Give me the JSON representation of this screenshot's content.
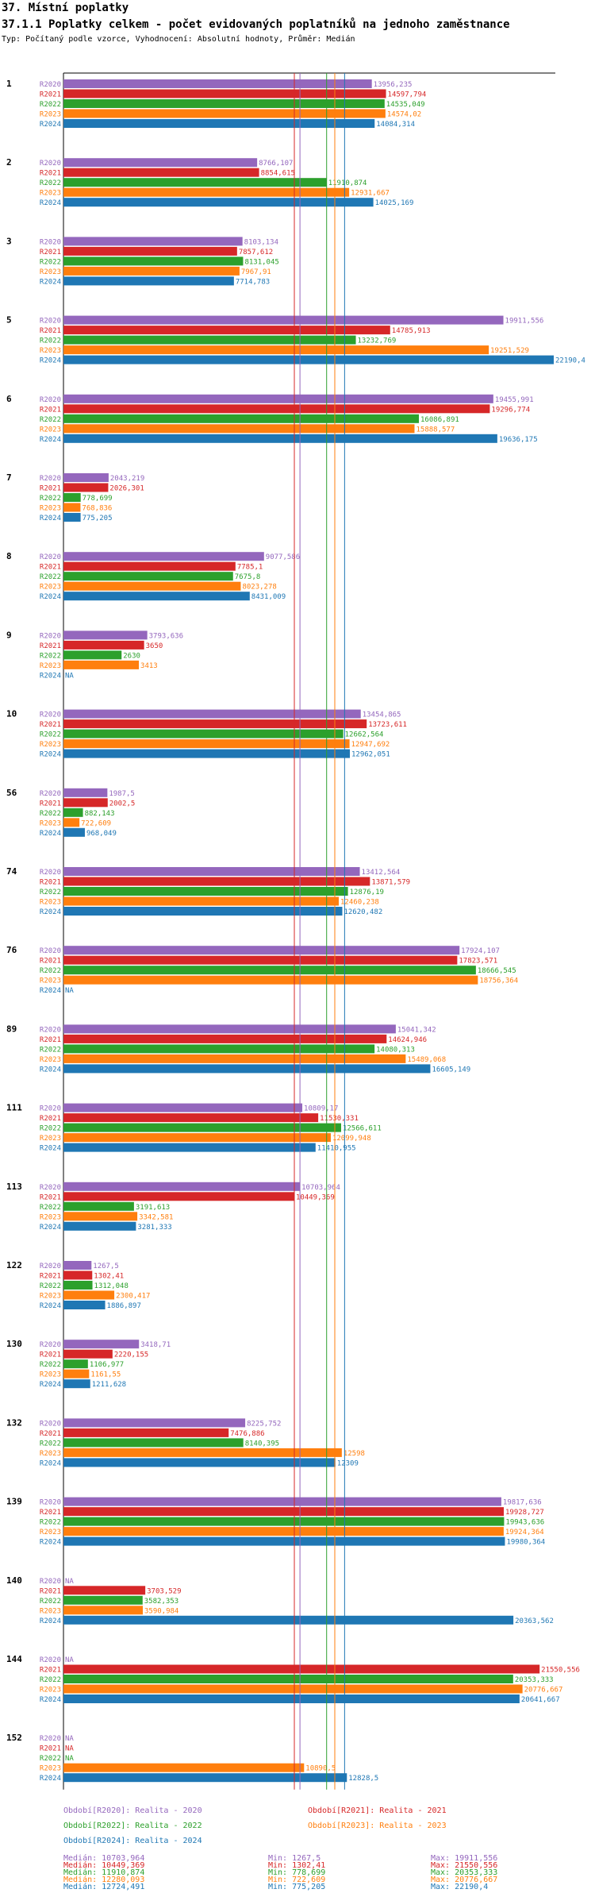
{
  "header": {
    "title": "37. Místní poplatky",
    "subtitle": "37.1.1 Poplatky celkem - počet evidovaných poplatníků na jednoho zaměstnance",
    "description": "Typ: Počítaný podle vzorce, Vyhodnocení: Absolutní hodnoty, Průměr: Medián"
  },
  "chart_data": {
    "type": "bar",
    "orientation": "horizontal",
    "title": "37.1.1 Poplatky celkem - počet evidovaných poplatníků na jednoho zaměstnance",
    "xlim": [
      0,
      22190.4
    ],
    "na_label": "NA",
    "categories": [
      "1",
      "2",
      "3",
      "5",
      "6",
      "7",
      "8",
      "9",
      "10",
      "56",
      "74",
      "76",
      "89",
      "111",
      "113",
      "122",
      "130",
      "132",
      "139",
      "140",
      "144",
      "152"
    ],
    "series": [
      {
        "name": "R2020",
        "color": "#9467bd",
        "values": [
          13956.235,
          8766.107,
          8103.134,
          19911.556,
          19455.991,
          2043.219,
          9077.586,
          3793.636,
          13454.865,
          1987.5,
          13412.564,
          17924.107,
          15041.342,
          10809.17,
          10703.964,
          1267.5,
          3418.71,
          8225.752,
          19817.636,
          null,
          null,
          null
        ],
        "labels": [
          "13956,235",
          "8766,107",
          "8103,134",
          "19911,556",
          "19455,991",
          "2043,219",
          "9077,586",
          "3793,636",
          "13454,865",
          "1987,5",
          "13412,564",
          "17924,107",
          "15041,342",
          "10809,17",
          "10703,964",
          "1267,5",
          "3418,71",
          "8225,752",
          "19817,636",
          "NA",
          "NA",
          "NA"
        ]
      },
      {
        "name": "R2021",
        "color": "#d62728",
        "values": [
          14597.794,
          8854.615,
          7857.612,
          14785.913,
          19296.774,
          2026.301,
          7785.1,
          3650,
          13723.611,
          2002.5,
          13871.579,
          17823.571,
          14624.946,
          11530.331,
          10449.369,
          1302.41,
          2220.155,
          7476.886,
          19928.727,
          3703.529,
          21550.556,
          null
        ],
        "labels": [
          "14597,794",
          "8854,615",
          "7857,612",
          "14785,913",
          "19296,774",
          "2026,301",
          "7785,1",
          "3650",
          "13723,611",
          "2002,5",
          "13871,579",
          "17823,571",
          "14624,946",
          "11530,331",
          "10449,369",
          "1302,41",
          "2220,155",
          "7476,886",
          "19928,727",
          "3703,529",
          "21550,556",
          "NA"
        ]
      },
      {
        "name": "R2022",
        "color": "#2ca02c",
        "values": [
          14535.049,
          11910.874,
          8131.045,
          13232.769,
          16086.891,
          778.699,
          7675.8,
          2630,
          12662.564,
          882.143,
          12876.19,
          18666.545,
          14080.313,
          12566.611,
          3191.613,
          1312.048,
          1106.977,
          8140.395,
          19943.636,
          3582.353,
          20353.333,
          null
        ],
        "labels": [
          "14535,049",
          "11910,874",
          "8131,045",
          "13232,769",
          "16086,891",
          "778,699",
          "7675,8",
          "2630",
          "12662,564",
          "882,143",
          "12876,19",
          "18666,545",
          "14080,313",
          "12566,611",
          "3191,613",
          "1312,048",
          "1106,977",
          "8140,395",
          "19943,636",
          "3582,353",
          "20353,333",
          "NA"
        ]
      },
      {
        "name": "R2023",
        "color": "#ff7f0e",
        "values": [
          14574.02,
          12931.667,
          7967.91,
          19251.529,
          15888.577,
          768.836,
          8023.278,
          3413,
          12947.692,
          722.609,
          12460.238,
          18756.364,
          15489.068,
          12099.948,
          3342.581,
          2300.417,
          1161.55,
          12598,
          19924.364,
          3590.984,
          20776.667,
          10890.5
        ],
        "labels": [
          "14574,02",
          "12931,667",
          "7967,91",
          "19251,529",
          "15888,577",
          "768,836",
          "8023,278",
          "3413",
          "12947,692",
          "722,609",
          "12460,238",
          "18756,364",
          "15489,068",
          "12099,948",
          "3342,581",
          "2300,417",
          "1161,55",
          "12598",
          "19924,364",
          "3590,984",
          "20776,667",
          "10890,5"
        ]
      },
      {
        "name": "R2024",
        "color": "#1f77b4",
        "values": [
          14084.314,
          14025.169,
          7714.783,
          22190.4,
          19636.175,
          775.205,
          8431.009,
          null,
          12962.051,
          968.049,
          12620.482,
          null,
          16605.149,
          11410.955,
          3281.333,
          1886.897,
          1211.628,
          12309,
          19980.364,
          20363.562,
          20641.667,
          12828.5
        ],
        "labels": [
          "14084,314",
          "14025,169",
          "7714,783",
          "22190,4",
          "19636,175",
          "775,205",
          "8431,009",
          "NA",
          "12962,051",
          "968,049",
          "12620,482",
          "NA",
          "16605,149",
          "11410,955",
          "3281,333",
          "1886,897",
          "1211,628",
          "12309",
          "19980,364",
          "20363,562",
          "20641,667",
          "12828,5"
        ]
      }
    ],
    "medians": [
      10703.964,
      10449.369,
      11910.874,
      12280.093,
      12724.491
    ],
    "legend": {
      "entries": [
        {
          "label": "Období[R2020]: Realita - 2020",
          "color": "#9467bd"
        },
        {
          "label": "Období[R2021]: Realita - 2021",
          "color": "#d62728"
        },
        {
          "label": "Období[R2022]: Realita - 2022",
          "color": "#2ca02c"
        },
        {
          "label": "Období[R2023]: Realita - 2023",
          "color": "#ff7f0e"
        },
        {
          "label": "Období[R2024]: Realita - 2024",
          "color": "#1f77b4"
        }
      ],
      "stats": [
        {
          "median": "Medián: 10703,964",
          "min": "Min: 1267,5",
          "max": "Max: 19911,556",
          "color": "#9467bd"
        },
        {
          "median": "Medián: 10449,369",
          "min": "Min: 1302,41",
          "max": "Max: 21550,556",
          "color": "#d62728"
        },
        {
          "median": "Medián: 11910,874",
          "min": "Min: 778,699",
          "max": "Max: 20353,333",
          "color": "#2ca02c"
        },
        {
          "median": "Medián: 12280,093",
          "min": "Min: 722,609",
          "max": "Max: 20776,667",
          "color": "#ff7f0e"
        },
        {
          "median": "Medián: 12724,491",
          "min": "Min: 775,205",
          "max": "Max: 22190,4",
          "color": "#1f77b4"
        }
      ]
    }
  }
}
